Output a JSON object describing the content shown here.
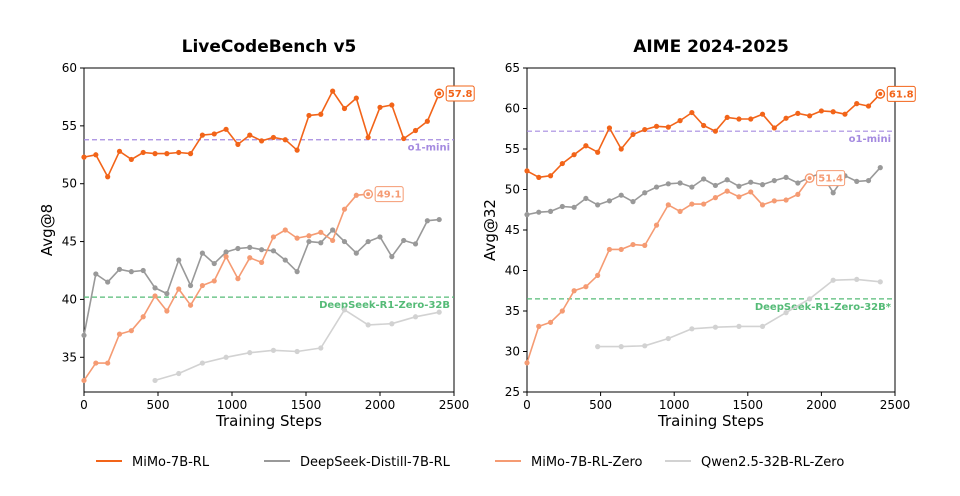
{
  "colors": {
    "mimo_rl": "#f26419",
    "distill": "#999999",
    "mimo_zero": "#f59b73",
    "qwen": "#d2d2d2",
    "o1": "#a58be0",
    "deepseek": "#55bb77"
  },
  "legend": [
    {
      "label": "MiMo-7B-RL",
      "color": "#f26419"
    },
    {
      "label": "DeepSeek-Distill-7B-RL",
      "color": "#999999"
    },
    {
      "label": "MiMo-7B-RL-Zero",
      "color": "#f59b73"
    },
    {
      "label": "Qwen2.5-32B-RL-Zero",
      "color": "#d2d2d2"
    }
  ],
  "chart_data": [
    {
      "type": "line",
      "title": "LiveCodeBench v5",
      "xlabel": "Training Steps",
      "ylabel": "Avg@8",
      "xlim": [
        0,
        2500
      ],
      "ylim": [
        32,
        60
      ],
      "xticks": [
        0,
        500,
        1000,
        1500,
        2000,
        2500
      ],
      "yticks": [
        35,
        40,
        45,
        50,
        55,
        60
      ],
      "xtick_labels": [
        "0",
        "500",
        "1000",
        "1500",
        "2000",
        "2500"
      ],
      "ytick_labels": [
        "35",
        "40",
        "45",
        "50",
        "55",
        "60"
      ],
      "grid": false,
      "hlines": [
        {
          "value": 53.8,
          "label": "o1-mini",
          "color": "#a58be0"
        },
        {
          "value": 40.2,
          "label": "DeepSeek-R1-Zero-32B",
          "color": "#55bb77"
        }
      ],
      "series": [
        {
          "name": "MiMo-7B-RL",
          "color": "#f26419",
          "final_label": "57.8",
          "x": [
            0,
            80,
            160,
            240,
            320,
            400,
            480,
            560,
            640,
            720,
            800,
            880,
            960,
            1040,
            1120,
            1200,
            1280,
            1360,
            1440,
            1520,
            1600,
            1680,
            1760,
            1840,
            1920,
            2000,
            2080,
            2160,
            2240,
            2320,
            2400
          ],
          "y": [
            52.3,
            52.5,
            50.6,
            52.8,
            52.1,
            52.7,
            52.6,
            52.6,
            52.7,
            52.6,
            54.2,
            54.3,
            54.7,
            53.4,
            54.2,
            53.7,
            54.0,
            53.8,
            52.9,
            55.9,
            56.0,
            58.0,
            56.5,
            57.4,
            54.0,
            56.6,
            56.8,
            53.9,
            54.6,
            55.4,
            57.8
          ]
        },
        {
          "name": "DeepSeek-Distill-7B-RL",
          "color": "#999999",
          "x": [
            0,
            80,
            160,
            240,
            320,
            400,
            480,
            560,
            640,
            720,
            800,
            880,
            960,
            1040,
            1120,
            1200,
            1280,
            1360,
            1440,
            1520,
            1600,
            1680,
            1760,
            1840,
            1920,
            2000,
            2080,
            2160,
            2240,
            2320,
            2400
          ],
          "y": [
            36.9,
            42.2,
            41.5,
            42.6,
            42.4,
            42.5,
            41.0,
            40.5,
            43.4,
            41.2,
            44.0,
            43.1,
            44.1,
            44.4,
            44.5,
            44.3,
            44.2,
            43.4,
            42.4,
            45.0,
            44.9,
            46.0,
            45.0,
            44.0,
            45.0,
            45.4,
            43.7,
            45.1,
            44.8,
            46.8,
            46.9
          ]
        },
        {
          "name": "MiMo-7B-RL-Zero",
          "color": "#f59b73",
          "final_label": "49.1",
          "x": [
            0,
            80,
            160,
            240,
            320,
            400,
            480,
            560,
            640,
            720,
            800,
            880,
            960,
            1040,
            1120,
            1200,
            1280,
            1360,
            1440,
            1520,
            1600,
            1680,
            1760,
            1840,
            1920
          ],
          "y": [
            33.0,
            34.5,
            34.5,
            37.0,
            37.3,
            38.5,
            40.3,
            39.0,
            40.9,
            39.5,
            41.2,
            41.6,
            43.7,
            41.8,
            43.6,
            43.2,
            45.4,
            46.0,
            45.3,
            45.5,
            45.8,
            45.1,
            47.8,
            49.0,
            49.1
          ]
        },
        {
          "name": "Qwen2.5-32B-RL-Zero",
          "color": "#d2d2d2",
          "x": [
            480,
            640,
            800,
            960,
            1120,
            1280,
            1440,
            1600,
            1760,
            1920,
            2080,
            2240,
            2400
          ],
          "y": [
            33.0,
            33.6,
            34.5,
            35.0,
            35.4,
            35.6,
            35.5,
            35.8,
            39.1,
            37.8,
            37.9,
            38.5,
            38.9
          ]
        }
      ]
    },
    {
      "type": "line",
      "title": "AIME 2024-2025",
      "xlabel": "Training Steps",
      "ylabel": "Avg@32",
      "xlim": [
        0,
        2500
      ],
      "ylim": [
        25,
        65
      ],
      "xticks": [
        0,
        500,
        1000,
        1500,
        2000,
        2500
      ],
      "yticks": [
        25,
        30,
        35,
        40,
        45,
        50,
        55,
        60,
        65
      ],
      "xtick_labels": [
        "0",
        "500",
        "1000",
        "1500",
        "2000",
        "2500"
      ],
      "ytick_labels": [
        "25",
        "30",
        "35",
        "40",
        "45",
        "50",
        "55",
        "60",
        "65"
      ],
      "grid": false,
      "hlines": [
        {
          "value": 57.2,
          "label": "o1-mini",
          "color": "#a58be0"
        },
        {
          "value": 36.5,
          "label": "DeepSeek-R1-Zero-32B*",
          "color": "#55bb77"
        }
      ],
      "series": [
        {
          "name": "MiMo-7B-RL",
          "color": "#f26419",
          "final_label": "61.8",
          "x": [
            0,
            80,
            160,
            240,
            320,
            400,
            480,
            560,
            640,
            720,
            800,
            880,
            960,
            1040,
            1120,
            1200,
            1280,
            1360,
            1440,
            1520,
            1600,
            1680,
            1760,
            1840,
            1920,
            2000,
            2080,
            2160,
            2240,
            2320,
            2400
          ],
          "y": [
            52.3,
            51.5,
            51.7,
            53.2,
            54.3,
            55.4,
            54.6,
            57.6,
            55.0,
            56.8,
            57.4,
            57.8,
            57.7,
            58.5,
            59.5,
            57.9,
            57.2,
            58.9,
            58.7,
            58.7,
            59.3,
            57.6,
            58.8,
            59.4,
            59.1,
            59.7,
            59.6,
            59.3,
            60.6,
            60.3,
            61.8
          ]
        },
        {
          "name": "DeepSeek-Distill-7B-RL",
          "color": "#999999",
          "x": [
            0,
            80,
            160,
            240,
            320,
            400,
            480,
            560,
            640,
            720,
            800,
            880,
            960,
            1040,
            1120,
            1200,
            1280,
            1360,
            1440,
            1520,
            1600,
            1680,
            1760,
            1840,
            1920,
            2000,
            2080,
            2160,
            2240,
            2320,
            2400
          ],
          "y": [
            46.9,
            47.2,
            47.3,
            47.9,
            47.8,
            48.9,
            48.1,
            48.6,
            49.3,
            48.5,
            49.6,
            50.3,
            50.7,
            50.8,
            50.3,
            51.3,
            50.5,
            51.2,
            50.4,
            50.9,
            50.6,
            51.1,
            51.5,
            50.8,
            51.5,
            52.0,
            49.6,
            51.7,
            51.0,
            51.1,
            52.7
          ]
        },
        {
          "name": "MiMo-7B-RL-Zero",
          "color": "#f59b73",
          "final_label": "51.4",
          "x": [
            0,
            80,
            160,
            240,
            320,
            400,
            480,
            560,
            640,
            720,
            800,
            880,
            960,
            1040,
            1120,
            1200,
            1280,
            1360,
            1440,
            1520,
            1600,
            1680,
            1760,
            1840,
            1920
          ],
          "y": [
            28.6,
            33.1,
            33.6,
            35.0,
            37.5,
            38.0,
            39.4,
            42.6,
            42.6,
            43.2,
            43.1,
            45.6,
            48.1,
            47.3,
            48.2,
            48.2,
            49.0,
            49.8,
            49.1,
            49.7,
            48.1,
            48.6,
            48.7,
            49.4,
            51.4
          ]
        },
        {
          "name": "Qwen2.5-32B-RL-Zero",
          "color": "#d2d2d2",
          "x": [
            480,
            640,
            800,
            960,
            1120,
            1280,
            1440,
            1600,
            1760,
            1920,
            2080,
            2240,
            2400
          ],
          "y": [
            30.6,
            30.6,
            30.7,
            31.6,
            32.8,
            33.0,
            33.1,
            33.1,
            34.8,
            36.5,
            38.8,
            38.9,
            38.6
          ]
        }
      ]
    }
  ]
}
